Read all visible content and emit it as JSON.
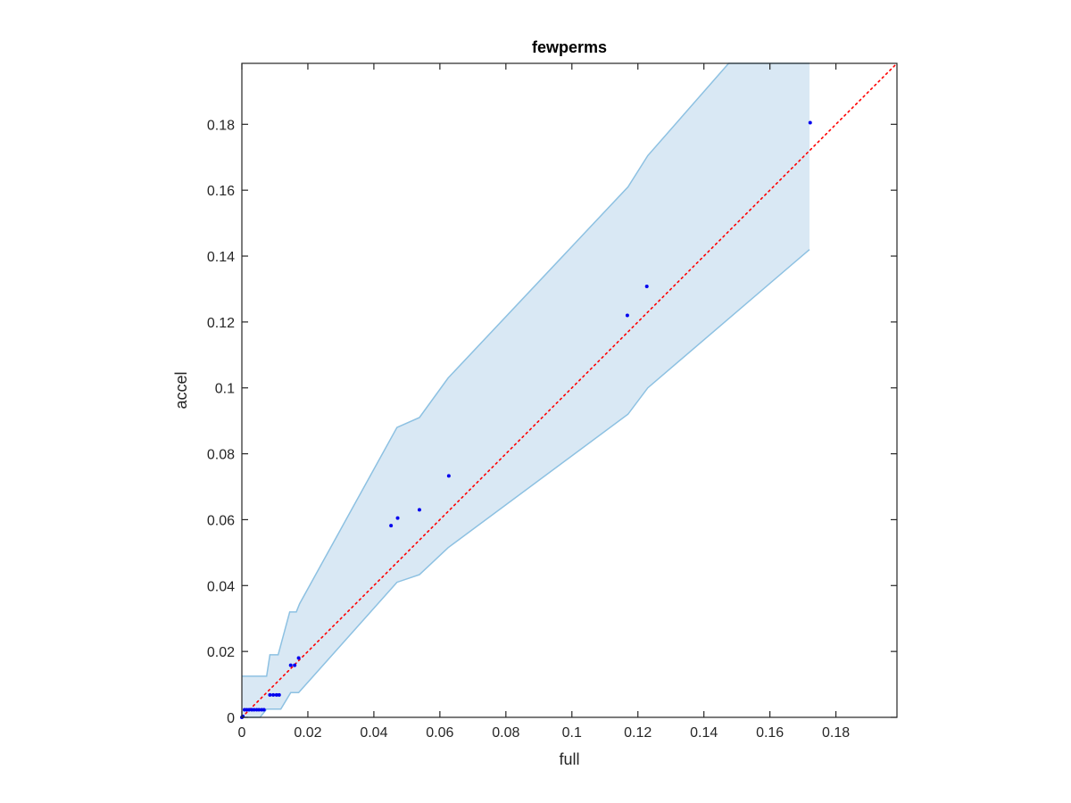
{
  "chart_data": {
    "type": "scatter",
    "title": "fewperms",
    "xlabel": "full",
    "ylabel": "accel",
    "xlim": [
      0,
      0.1985
    ],
    "ylim": [
      0,
      0.1985
    ],
    "xticks": [
      0,
      0.02,
      0.04,
      0.06,
      0.08,
      0.1,
      0.12,
      0.14,
      0.16,
      0.18
    ],
    "yticks": [
      0,
      0.02,
      0.04,
      0.06,
      0.08,
      0.1,
      0.12,
      0.14,
      0.16,
      0.18
    ],
    "xtick_labels": [
      "0",
      "0.02",
      "0.04",
      "0.06",
      "0.08",
      "0.1",
      "0.12",
      "0.14",
      "0.16",
      "0.18"
    ],
    "ytick_labels": [
      "0",
      "0.02",
      "0.04",
      "0.06",
      "0.08",
      "0.1",
      "0.12",
      "0.14",
      "0.16",
      "0.18"
    ],
    "grid": false,
    "colors": {
      "points": "#0000ee",
      "band_fill": "#d9e8f4",
      "band_edge": "#8dc1e2",
      "reference_line": "#ff0000",
      "axes": "#262626"
    },
    "reference_line": {
      "from": [
        0,
        0
      ],
      "to": [
        0.1985,
        0.1985
      ],
      "style": "dotted"
    },
    "band": {
      "upper": [
        [
          0,
          0.0125
        ],
        [
          0.0075,
          0.0125
        ],
        [
          0.0085,
          0.019
        ],
        [
          0.011,
          0.019
        ],
        [
          0.0145,
          0.032
        ],
        [
          0.0165,
          0.032
        ],
        [
          0.0175,
          0.0345
        ],
        [
          0.047,
          0.088
        ],
        [
          0.0538,
          0.091
        ],
        [
          0.0625,
          0.103
        ],
        [
          0.117,
          0.161
        ],
        [
          0.123,
          0.1705
        ],
        [
          0.1475,
          0.1985
        ],
        [
          0.172,
          0.1985
        ]
      ],
      "lower": [
        [
          0,
          0
        ],
        [
          0.0055,
          0
        ],
        [
          0.0075,
          0.0025
        ],
        [
          0.0118,
          0.0025
        ],
        [
          0.0148,
          0.0075
        ],
        [
          0.0172,
          0.0075
        ],
        [
          0.047,
          0.041
        ],
        [
          0.0538,
          0.0433
        ],
        [
          0.0625,
          0.0515
        ],
        [
          0.117,
          0.092
        ],
        [
          0.123,
          0.1
        ],
        [
          0.172,
          0.142
        ]
      ]
    },
    "points": [
      [
        0,
        0
      ],
      [
        0.0003,
        0.0003
      ],
      [
        0.0008,
        0.0023
      ],
      [
        0.0015,
        0.0023
      ],
      [
        0.0022,
        0.0023
      ],
      [
        0.003,
        0.0023
      ],
      [
        0.0037,
        0.0023
      ],
      [
        0.0045,
        0.0023
      ],
      [
        0.0052,
        0.0023
      ],
      [
        0.006,
        0.0023
      ],
      [
        0.0067,
        0.0023
      ],
      [
        0.0085,
        0.0068
      ],
      [
        0.0095,
        0.0068
      ],
      [
        0.0105,
        0.0068
      ],
      [
        0.0113,
        0.0068
      ],
      [
        0.0148,
        0.0158
      ],
      [
        0.016,
        0.0158
      ],
      [
        0.0172,
        0.018
      ],
      [
        0.0452,
        0.0582
      ],
      [
        0.0472,
        0.0605
      ],
      [
        0.0538,
        0.063
      ],
      [
        0.0627,
        0.0733
      ],
      [
        0.1168,
        0.122
      ],
      [
        0.1227,
        0.1308
      ],
      [
        0.1722,
        0.1805
      ]
    ]
  }
}
